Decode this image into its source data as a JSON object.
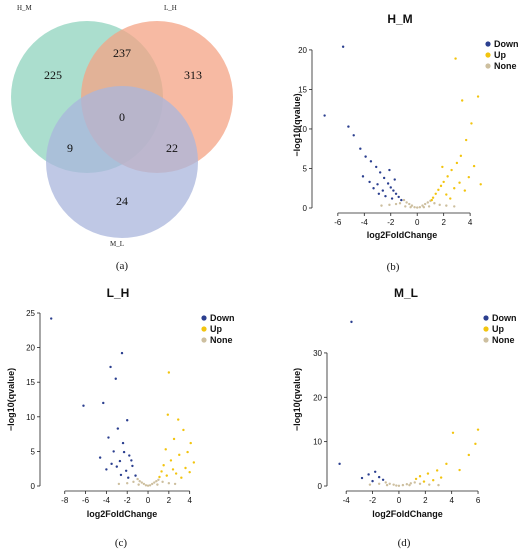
{
  "venn": {
    "label": "(a)",
    "sets": [
      {
        "name": "H_M",
        "color": "#8fd3be"
      },
      {
        "name": "L_H",
        "color": "#f4a384"
      },
      {
        "name": "M_L",
        "color": "#a9b6dc"
      }
    ],
    "regions": {
      "h_only": "225",
      "l_only": "313",
      "m_only": "24",
      "hl": "237",
      "hm": "9",
      "lm": "22",
      "all": "0"
    }
  },
  "panel_labels": {
    "b": "(b)",
    "c": "(c)",
    "d": "(d)"
  },
  "legend": {
    "down": "Down",
    "up": "Up",
    "none": "None",
    "colors": {
      "down": "#2b3f8f",
      "up": "#f2c40f",
      "none": "#cdbf9f"
    }
  },
  "chart_data": [
    {
      "type": "scatter",
      "title": "H_M",
      "xlabel": "log2FoldChange",
      "ylabel": "−log10(qvalue)",
      "xlim": [
        -7.5,
        5.2
      ],
      "ylim": [
        0,
        21
      ],
      "xticks": [
        "-6",
        "-4",
        "-2",
        "0",
        "2",
        "4"
      ],
      "xtick_values": [
        -6,
        -4,
        -2,
        0,
        2,
        4
      ],
      "yticks": [
        "0",
        "5",
        "10",
        "15",
        "20"
      ],
      "ytick_values": [
        0,
        5,
        10,
        15,
        20
      ],
      "series": [
        {
          "name": "Down",
          "points": [
            [
              -5.6,
              20.4
            ],
            [
              -7,
              11.7
            ],
            [
              -5.2,
              10.3
            ],
            [
              -4.8,
              9.2
            ],
            [
              -4.3,
              7.5
            ],
            [
              -3.9,
              6.5
            ],
            [
              -3.5,
              5.9
            ],
            [
              -3.1,
              5.2
            ],
            [
              -2.8,
              4.5
            ],
            [
              -2.5,
              3.8
            ],
            [
              -2.2,
              3.1
            ],
            [
              -2,
              2.6
            ],
            [
              -1.8,
              2.2
            ],
            [
              -1.6,
              1.8
            ],
            [
              -1.4,
              1.4
            ],
            [
              -1.2,
              1.0
            ],
            [
              -3.0,
              3.0
            ],
            [
              -2.6,
              2.2
            ],
            [
              -2.4,
              1.5
            ],
            [
              -1.9,
              1.2
            ],
            [
              -3.3,
              2.5
            ],
            [
              -4.1,
              4.0
            ],
            [
              -2.9,
              1.8
            ],
            [
              -2.1,
              4.8
            ],
            [
              -1.7,
              3.6
            ],
            [
              -3.6,
              3.3
            ]
          ]
        },
        {
          "name": "Up",
          "points": [
            [
              2.9,
              18.9
            ],
            [
              3.4,
              13.6
            ],
            [
              4.6,
              14.1
            ],
            [
              4.1,
              10.7
            ],
            [
              3.7,
              8.6
            ],
            [
              3.3,
              6.6
            ],
            [
              3.0,
              5.7
            ],
            [
              2.6,
              4.8
            ],
            [
              2.3,
              4.0
            ],
            [
              2.0,
              3.3
            ],
            [
              1.8,
              2.8
            ],
            [
              1.6,
              2.3
            ],
            [
              1.4,
              1.8
            ],
            [
              1.2,
              1.3
            ],
            [
              1.1,
              1.0
            ],
            [
              2.8,
              2.5
            ],
            [
              3.2,
              3.2
            ],
            [
              2.2,
              1.7
            ],
            [
              4.3,
              5.3
            ],
            [
              3.9,
              3.9
            ],
            [
              1.9,
              5.2
            ],
            [
              2.5,
              1.2
            ],
            [
              3.6,
              2.2
            ],
            [
              4.8,
              3.0
            ]
          ]
        },
        {
          "name": "None",
          "points": [
            [
              -1.0,
              1.0
            ],
            [
              -0.8,
              0.7
            ],
            [
              -0.6,
              0.5
            ],
            [
              -0.4,
              0.3
            ],
            [
              -0.2,
              0.1
            ],
            [
              0,
              0.05
            ],
            [
              0.2,
              0.1
            ],
            [
              0.4,
              0.3
            ],
            [
              0.6,
              0.5
            ],
            [
              0.8,
              0.7
            ],
            [
              1.0,
              0.9
            ],
            [
              -1.3,
              0.6
            ],
            [
              -1.6,
              0.5
            ],
            [
              -2.1,
              0.4
            ],
            [
              -2.7,
              0.3
            ],
            [
              1.3,
              0.6
            ],
            [
              1.7,
              0.4
            ],
            [
              2.2,
              0.3
            ],
            [
              2.8,
              0.2
            ],
            [
              -0.9,
              0.2
            ],
            [
              0.9,
              0.2
            ],
            [
              -0.5,
              0.1
            ],
            [
              0.5,
              0.1
            ]
          ]
        }
      ]
    },
    {
      "type": "scatter",
      "title": "L_H",
      "xlabel": "log2FoldChange",
      "ylabel": "−log10(qvalue)",
      "xlim": [
        -9.8,
        4.8
      ],
      "ylim": [
        0,
        25
      ],
      "xticks": [
        "-8",
        "-6",
        "-4",
        "-2",
        "0",
        "2",
        "4"
      ],
      "xtick_values": [
        -8,
        -6,
        -4,
        -2,
        0,
        2,
        4
      ],
      "yticks": [
        "0",
        "5",
        "10",
        "15",
        "20",
        "25"
      ],
      "ytick_values": [
        0,
        5,
        10,
        15,
        20,
        25
      ],
      "series": [
        {
          "name": "Down",
          "points": [
            [
              -9.3,
              24.2
            ],
            [
              -2.5,
              19.2
            ],
            [
              -3.6,
              17.2
            ],
            [
              -3.1,
              15.5
            ],
            [
              -6.2,
              11.6
            ],
            [
              -4.3,
              12.0
            ],
            [
              -2.0,
              9.5
            ],
            [
              -2.9,
              8.3
            ],
            [
              -3.8,
              7.0
            ],
            [
              -2.4,
              6.2
            ],
            [
              -3.3,
              5.0
            ],
            [
              -1.8,
              4.4
            ],
            [
              -2.7,
              3.6
            ],
            [
              -1.5,
              2.9
            ],
            [
              -2.1,
              2.2
            ],
            [
              -1.2,
              1.5
            ],
            [
              -3.0,
              2.8
            ],
            [
              -4.6,
              4.1
            ],
            [
              -1.9,
              1.2
            ],
            [
              -2.6,
              1.6
            ],
            [
              -3.5,
              3.2
            ],
            [
              -1.6,
              3.7
            ],
            [
              -2.3,
              4.9
            ],
            [
              -4.0,
              2.4
            ]
          ]
        },
        {
          "name": "Up",
          "points": [
            [
              2.0,
              16.4
            ],
            [
              1.9,
              10.3
            ],
            [
              2.9,
              9.6
            ],
            [
              3.4,
              8.1
            ],
            [
              2.5,
              6.8
            ],
            [
              4.1,
              6.2
            ],
            [
              1.7,
              5.3
            ],
            [
              3.0,
              4.5
            ],
            [
              2.2,
              3.7
            ],
            [
              1.5,
              3.0
            ],
            [
              3.6,
              2.6
            ],
            [
              1.3,
              2.1
            ],
            [
              2.7,
              1.8
            ],
            [
              1.1,
              1.3
            ],
            [
              4.4,
              3.4
            ],
            [
              3.8,
              4.9
            ],
            [
              2.4,
              2.4
            ],
            [
              1.8,
              1.5
            ],
            [
              3.2,
              1.2
            ],
            [
              4.0,
              2.0
            ]
          ]
        },
        {
          "name": "None",
          "points": [
            [
              -1.0,
              1.0
            ],
            [
              -0.8,
              0.7
            ],
            [
              -0.6,
              0.5
            ],
            [
              -0.4,
              0.3
            ],
            [
              -0.2,
              0.1
            ],
            [
              0,
              0.05
            ],
            [
              0.2,
              0.1
            ],
            [
              0.4,
              0.3
            ],
            [
              0.6,
              0.5
            ],
            [
              0.8,
              0.7
            ],
            [
              1.0,
              0.9
            ],
            [
              -1.4,
              0.6
            ],
            [
              -2.0,
              0.4
            ],
            [
              -2.8,
              0.3
            ],
            [
              1.4,
              0.6
            ],
            [
              2.0,
              0.4
            ],
            [
              2.6,
              0.3
            ],
            [
              -0.9,
              0.2
            ],
            [
              0.9,
              0.2
            ]
          ]
        }
      ]
    },
    {
      "type": "scatter",
      "title": "M_L",
      "xlabel": "log2FoldChange",
      "ylabel": "−log10(qvalue)",
      "xlim": [
        -5.0,
        6.3
      ],
      "ylim": [
        0,
        39
      ],
      "xticks": [
        "-4",
        "-2",
        "0",
        "2",
        "4",
        "6"
      ],
      "xtick_values": [
        -4,
        -2,
        0,
        2,
        4,
        6
      ],
      "yticks": [
        "0",
        "10",
        "20",
        "30"
      ],
      "ytick_values": [
        0,
        10,
        20,
        30
      ],
      "series": [
        {
          "name": "Down",
          "points": [
            [
              -3.6,
              37.0
            ],
            [
              -4.5,
              5.0
            ],
            [
              -1.8,
              3.2
            ],
            [
              -2.3,
              2.6
            ],
            [
              -1.5,
              2.0
            ],
            [
              -2.8,
              1.8
            ],
            [
              -1.2,
              1.4
            ],
            [
              -2.0,
              1.1
            ]
          ]
        },
        {
          "name": "Up",
          "points": [
            [
              6.0,
              12.7
            ],
            [
              5.8,
              9.5
            ],
            [
              4.1,
              12.0
            ],
            [
              5.3,
              7.0
            ],
            [
              3.6,
              5.0
            ],
            [
              2.9,
              3.5
            ],
            [
              2.2,
              2.8
            ],
            [
              1.6,
              2.2
            ],
            [
              1.3,
              1.6
            ],
            [
              3.2,
              1.9
            ],
            [
              2.6,
              1.3
            ],
            [
              4.6,
              3.6
            ],
            [
              1.9,
              1.0
            ]
          ]
        },
        {
          "name": "None",
          "points": [
            [
              -1.0,
              0.8
            ],
            [
              -0.7,
              0.5
            ],
            [
              -0.4,
              0.3
            ],
            [
              -0.2,
              0.1
            ],
            [
              0,
              0.05
            ],
            [
              0.3,
              0.2
            ],
            [
              0.6,
              0.4
            ],
            [
              0.9,
              0.6
            ],
            [
              1.2,
              0.8
            ],
            [
              -1.5,
              0.5
            ],
            [
              -2.2,
              0.3
            ],
            [
              1.6,
              0.5
            ],
            [
              2.3,
              0.3
            ],
            [
              3.0,
              0.2
            ],
            [
              -0.9,
              0.2
            ],
            [
              0.8,
              0.2
            ]
          ]
        }
      ]
    }
  ]
}
